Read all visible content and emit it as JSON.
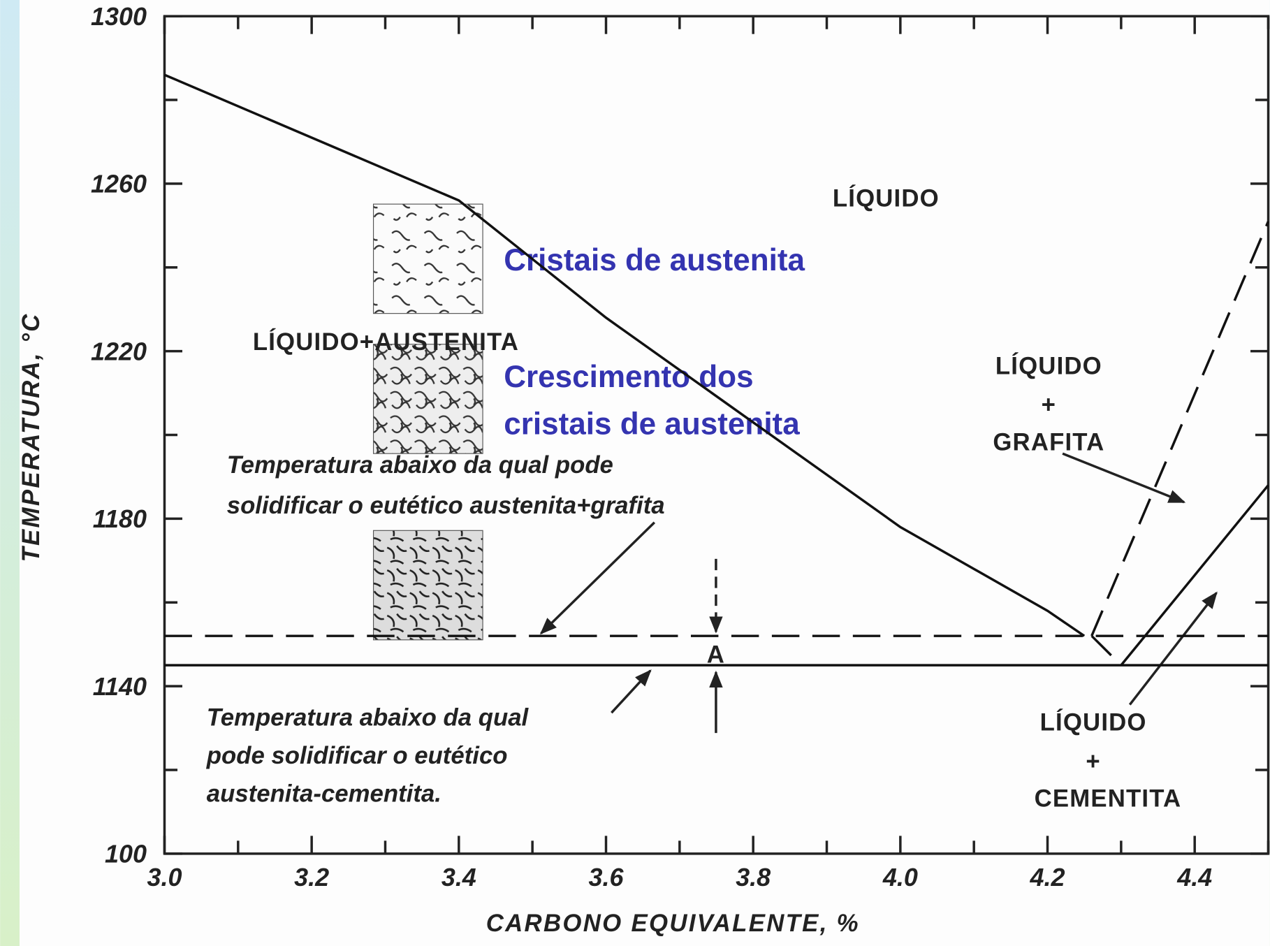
{
  "chart_data": {
    "type": "line",
    "x_label": "CARBONO EQUIVALENTE, %",
    "y_label": "TEMPERATURA, °C",
    "xlim": [
      3.0,
      4.5
    ],
    "ylim": [
      1100,
      1300
    ],
    "xticks": [
      {
        "value": 3,
        "label": "3.0"
      },
      3.2,
      3.4,
      3.6,
      3.8,
      {
        "value": 4,
        "label": "4.0"
      },
      4.2,
      4.4
    ],
    "xminor_ticks": [
      3.1,
      3.3,
      3.5,
      3.7,
      3.9,
      4.1,
      4.3,
      4.5
    ],
    "yticks": [
      {
        "value": 1100,
        "label": "100"
      },
      1140,
      1180,
      1220,
      1260,
      1300
    ],
    "yminor_ticks": [
      1120,
      1160,
      1200,
      1240,
      1280
    ],
    "grid": false,
    "series": [
      {
        "x": [
          3.0,
          3.2,
          3.4,
          3.6,
          3.8,
          4.0,
          4.2,
          4.25
        ],
        "values": [
          1286,
          1271,
          1256,
          1228,
          1203,
          1178,
          1158,
          1152
        ],
        "color": "#111111",
        "style": "solid"
      },
      {
        "x": [
          3.0,
          4.5
        ],
        "values": [
          1152,
          1152
        ],
        "color": "#111111",
        "style": "dashed"
      },
      {
        "x": [
          3.0,
          4.5
        ],
        "values": [
          1145,
          1145
        ],
        "color": "#111111",
        "style": "solid"
      },
      {
        "x": [
          4.26,
          4.5
        ],
        "values": [
          1152,
          1251
        ],
        "color": "#111111",
        "style": "dashed"
      },
      {
        "x": [
          4.26,
          4.3
        ],
        "values": [
          1152,
          1145
        ],
        "color": "#111111",
        "style": "dashed"
      },
      {
        "x": [
          4.3,
          4.5
        ],
        "values": [
          1145,
          1188
        ],
        "color": "#111111",
        "style": "solid"
      }
    ],
    "annotations": {
      "liquid": "LÍQUIDO",
      "liquid_austenite": "LÍQUIDO+AUSTENITA",
      "liquid_graphite": [
        "LÍQUIDO",
        "+",
        "GRAFITA"
      ],
      "liquid_cementite": [
        "LÍQUIDO",
        "+",
        "CEMENTITA"
      ],
      "point": "A",
      "stable_note": [
        "Temperatura abaixo da qual pode",
        "solidificar o eutético austenita+grafita"
      ],
      "metastable_note": [
        "Temperatura abaixo da qual",
        "pode solidificar o eutético",
        "austenita-cementita."
      ],
      "micro_1": "Cristais de austenita",
      "micro_2": [
        "Crescimento dos",
        "cristais de austenita"
      ]
    }
  }
}
